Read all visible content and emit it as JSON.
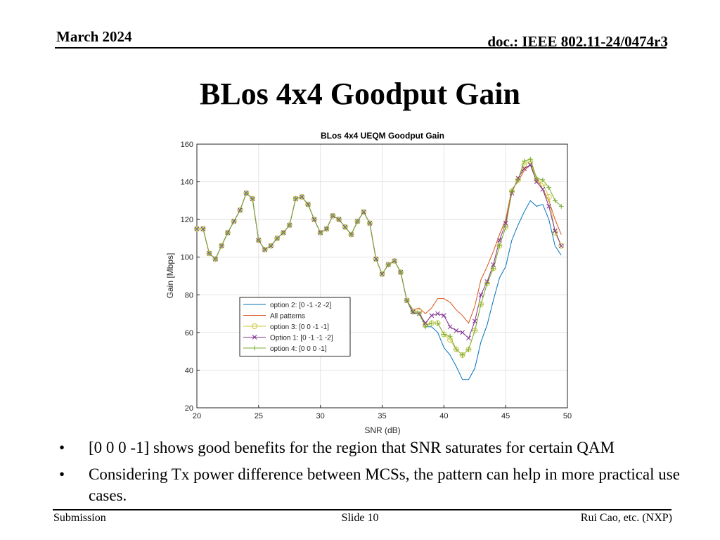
{
  "header": {
    "date": "March 2024",
    "doc": "doc.: IEEE 802.11-24/0474r3"
  },
  "slide_title": "BLos 4x4 Goodput Gain",
  "bullets": [
    "[0 0 0 -1] shows good benefits for the region that SNR saturates for certain QAM",
    "Considering Tx power difference between MCSs, the pattern can help in more practical use cases."
  ],
  "footer": {
    "left": "Submission",
    "center": "Slide 10",
    "right": "Rui Cao, etc. (NXP)"
  },
  "chart_data": {
    "type": "line",
    "title": "BLos 4x4 UEQM Goodput Gain",
    "xlabel": "SNR (dB)",
    "ylabel": "Gain [Mbps]",
    "xlim": [
      20,
      50
    ],
    "ylim": [
      20,
      160
    ],
    "xticks": [
      20,
      25,
      30,
      35,
      40,
      45,
      50
    ],
    "yticks": [
      20,
      40,
      60,
      80,
      100,
      120,
      140,
      160
    ],
    "grid": true,
    "legend_position": "lower-left",
    "x": [
      20,
      20.5,
      21,
      21.5,
      22,
      22.5,
      23,
      23.5,
      24,
      24.5,
      25,
      25.5,
      26,
      26.5,
      27,
      27.5,
      28,
      28.5,
      29,
      29.5,
      30,
      30.5,
      31,
      31.5,
      32,
      32.5,
      33,
      33.5,
      34,
      34.5,
      35,
      35.5,
      36,
      36.5,
      37,
      37.5,
      38,
      38.5,
      39,
      39.5,
      40,
      40.5,
      41,
      41.5,
      42,
      42.5,
      43,
      43.5,
      44,
      44.5,
      45,
      45.5,
      46,
      46.5,
      47,
      47.5,
      48,
      48.5,
      49,
      49.5
    ],
    "series": [
      {
        "name": "option 2: [0 -1 -2 -2]",
        "color": "#0072bd",
        "marker": "none",
        "values": [
          115,
          115,
          102,
          99,
          106,
          113,
          119,
          125,
          134,
          131,
          109,
          104,
          106,
          110,
          113,
          117,
          131,
          132,
          128,
          120,
          113,
          115,
          122,
          120,
          116,
          112,
          119,
          124,
          118,
          99,
          91,
          96,
          98,
          92,
          77,
          70,
          70,
          63,
          63,
          60,
          52,
          48,
          42,
          35,
          35,
          41,
          55,
          64,
          77,
          89,
          95,
          109,
          117,
          124,
          130,
          127,
          128,
          120,
          106,
          101
        ]
      },
      {
        "name": "All patterns",
        "color": "#d95319",
        "marker": "none",
        "values": [
          115,
          115,
          102,
          99,
          106,
          113,
          119,
          125,
          134,
          131,
          109,
          104,
          106,
          110,
          113,
          117,
          131,
          132,
          128,
          120,
          113,
          115,
          122,
          120,
          116,
          112,
          119,
          124,
          118,
          99,
          91,
          96,
          98,
          92,
          77,
          72,
          73,
          70,
          73,
          78,
          78,
          76,
          72,
          69,
          65,
          74,
          88,
          95,
          103,
          112,
          120,
          136,
          140,
          146,
          149,
          142,
          136,
          130,
          120,
          112
        ]
      },
      {
        "name": "option 3: [0 0  -1  -1]",
        "color": "#c8c83a",
        "marker": "circle",
        "values": [
          115,
          115,
          102,
          99,
          106,
          113,
          119,
          125,
          134,
          131,
          109,
          104,
          106,
          110,
          113,
          117,
          131,
          132,
          128,
          120,
          113,
          115,
          122,
          120,
          116,
          112,
          119,
          124,
          118,
          99,
          91,
          96,
          98,
          92,
          77,
          71,
          71,
          64,
          65,
          65,
          59,
          56,
          51,
          48,
          51,
          61,
          75,
          86,
          94,
          106,
          116,
          135,
          141,
          149,
          151,
          141,
          139,
          132,
          113,
          106
        ]
      },
      {
        "name": "Option 1: [0  -1  -1  -2]",
        "color": "#7e2f8e",
        "marker": "x",
        "values": [
          115,
          115,
          102,
          99,
          106,
          113,
          119,
          125,
          134,
          131,
          109,
          104,
          106,
          110,
          113,
          117,
          131,
          132,
          128,
          120,
          113,
          115,
          122,
          120,
          116,
          112,
          119,
          124,
          118,
          99,
          91,
          96,
          98,
          92,
          77,
          71,
          70,
          65,
          69,
          70,
          69,
          63,
          61,
          60,
          57,
          66,
          80,
          87,
          96,
          109,
          118,
          134,
          142,
          147,
          149,
          140,
          136,
          127,
          114,
          106
        ]
      },
      {
        "name": "option 4: [0 0 0 -1]",
        "color": "#77ac30",
        "marker": "plus",
        "values": [
          115,
          115,
          102,
          99,
          106,
          113,
          119,
          125,
          134,
          131,
          109,
          104,
          106,
          110,
          113,
          117,
          131,
          132,
          128,
          120,
          113,
          115,
          122,
          120,
          116,
          112,
          119,
          124,
          118,
          99,
          91,
          96,
          98,
          92,
          77,
          71,
          70,
          63,
          65,
          65,
          59,
          58,
          51,
          48,
          51,
          61,
          75,
          86,
          94,
          106,
          116,
          135,
          141,
          151,
          152,
          142,
          141,
          137,
          130,
          127
        ]
      }
    ]
  }
}
